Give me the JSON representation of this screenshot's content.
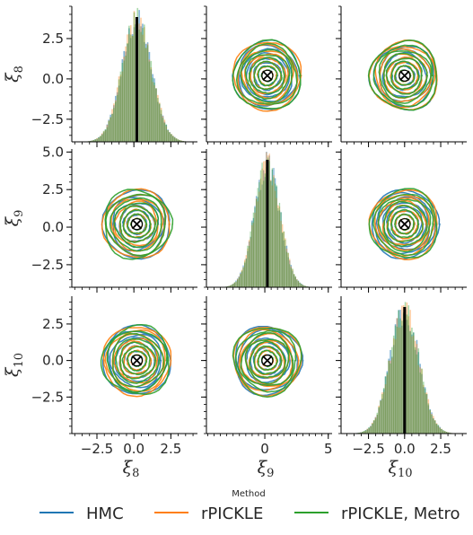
{
  "chart_data": {
    "type": "pairplot",
    "variables": [
      "ξ8",
      "ξ9",
      "ξ10"
    ],
    "axis_labels": {
      "x": [
        "ξ8",
        "ξ9",
        "ξ10"
      ],
      "y": [
        "ξ8",
        "ξ9",
        "ξ10"
      ]
    },
    "ranges": {
      "xlim": [
        [
          -4.2,
          4.3
        ],
        [
          -4.6,
          5.3
        ],
        [
          -4.4,
          4.3
        ]
      ],
      "ylim": [
        [
          -3.9,
          4.5
        ],
        [
          -4.0,
          5.2
        ],
        [
          -5.0,
          4.4
        ]
      ]
    },
    "ticks": {
      "x": [
        [
          -2.5,
          0.0,
          2.5
        ],
        [
          0,
          5
        ],
        [
          -2.5,
          0.0,
          2.5
        ]
      ],
      "x_labels": [
        [
          "−2.5",
          "0.0",
          "2.5"
        ],
        [
          "0",
          "5"
        ],
        [
          "−2.5",
          "0.0",
          "2.5"
        ]
      ],
      "y": [
        [
          -2.5,
          0.0,
          2.5
        ],
        [
          -2.5,
          0.0,
          2.5,
          5.0
        ],
        [
          -2.5,
          0.0,
          2.5
        ]
      ],
      "y_labels": [
        [
          "−2.5",
          "0.0",
          "2.5"
        ],
        [
          "−2.5",
          "0.0",
          "2.5",
          "5.0"
        ],
        [
          "−2.5",
          "0.0",
          "2.5"
        ]
      ]
    },
    "diagonal": {
      "type": "histogram",
      "means": [
        0.2,
        0.2,
        0.0
      ],
      "std": [
        1.0,
        1.0,
        1.0
      ],
      "true_values": [
        0.2,
        0.2,
        0.0
      ]
    },
    "off_diagonal": {
      "type": "kde-contour",
      "marker": "x in circle",
      "center": [
        0.2,
        0.2,
        0.0
      ],
      "levels": 8
    },
    "series": [
      {
        "name": "HMC",
        "color": "#1f77b4"
      },
      {
        "name": "rPICKLE",
        "color": "#ff7f0e"
      },
      {
        "name": "rPICKLE, Metro",
        "color": "#2ca02c"
      }
    ],
    "legend": {
      "title": "Method",
      "placement": "bottom-center",
      "entries": [
        "HMC",
        "rPICKLE",
        "rPICKLE, Metro"
      ]
    },
    "grid": false
  }
}
